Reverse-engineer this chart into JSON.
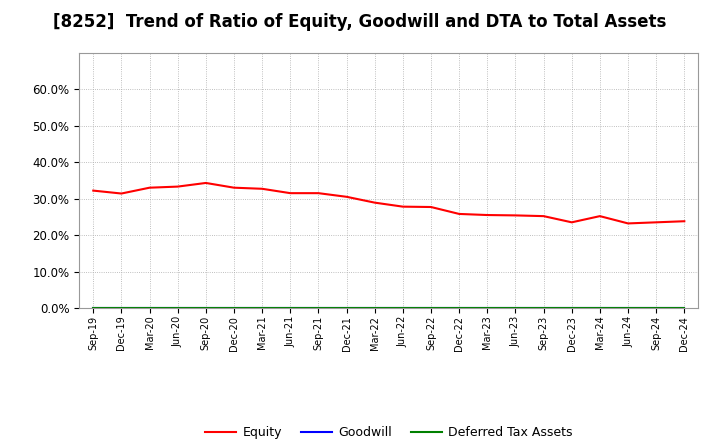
{
  "title": "[8252]  Trend of Ratio of Equity, Goodwill and DTA to Total Assets",
  "x_labels": [
    "Sep-19",
    "Dec-19",
    "Mar-20",
    "Jun-20",
    "Sep-20",
    "Dec-20",
    "Mar-21",
    "Jun-21",
    "Sep-21",
    "Dec-21",
    "Mar-22",
    "Jun-22",
    "Sep-22",
    "Dec-22",
    "Mar-23",
    "Jun-23",
    "Sep-23",
    "Dec-23",
    "Mar-24",
    "Jun-24",
    "Sep-24",
    "Dec-24"
  ],
  "equity": [
    0.322,
    0.314,
    0.33,
    0.333,
    0.343,
    0.33,
    0.327,
    0.315,
    0.315,
    0.305,
    0.289,
    0.278,
    0.277,
    0.258,
    0.255,
    0.254,
    0.252,
    0.235,
    0.252,
    0.232,
    0.235,
    0.238
  ],
  "goodwill": [
    0.0,
    0.0,
    0.0,
    0.0,
    0.0,
    0.0,
    0.0,
    0.0,
    0.0,
    0.0,
    0.0,
    0.0,
    0.0,
    0.0,
    0.0,
    0.0,
    0.0,
    0.0,
    0.0,
    0.0,
    0.0,
    0.0
  ],
  "dta": [
    0.0,
    0.0,
    0.0,
    0.0,
    0.0,
    0.0,
    0.0,
    0.0,
    0.0,
    0.0,
    0.0,
    0.0,
    0.0,
    0.0,
    0.0,
    0.0,
    0.0,
    0.0,
    0.0,
    0.0,
    0.0,
    0.0
  ],
  "equity_color": "#ff0000",
  "goodwill_color": "#0000ff",
  "dta_color": "#008000",
  "ylim": [
    0.0,
    0.7
  ],
  "yticks": [
    0.0,
    0.1,
    0.2,
    0.3,
    0.4,
    0.5,
    0.6
  ],
  "background_color": "#ffffff",
  "plot_bg_color": "#ffffff",
  "grid_color": "#aaaaaa",
  "title_fontsize": 12,
  "legend_labels": [
    "Equity",
    "Goodwill",
    "Deferred Tax Assets"
  ]
}
